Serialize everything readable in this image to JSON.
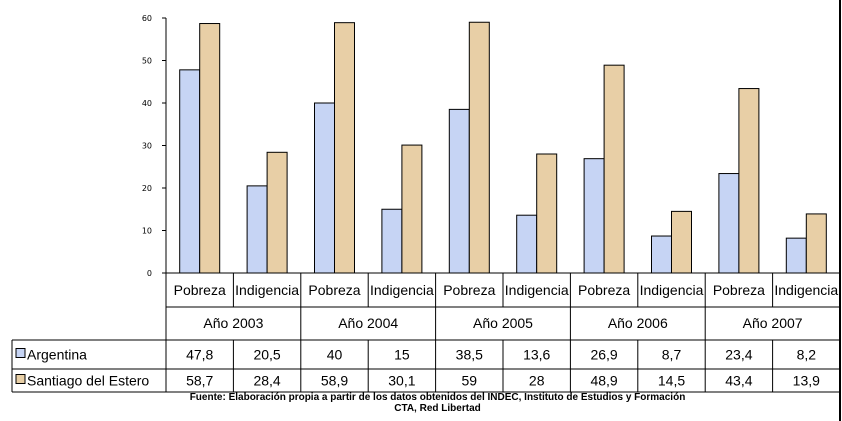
{
  "chart_data": {
    "type": "bar",
    "ylim": [
      0,
      60
    ],
    "yticks": [
      0,
      10,
      20,
      30,
      40,
      50,
      60
    ],
    "groups": [
      {
        "year": "Año 2003",
        "categories": [
          "Pobreza",
          "Indigencia"
        ]
      },
      {
        "year": "Año 2004",
        "categories": [
          "Pobreza",
          "Indigencia"
        ]
      },
      {
        "year": "Año 2005",
        "categories": [
          "Pobreza",
          "Indigencia"
        ]
      },
      {
        "year": "Año 2006",
        "categories": [
          "Pobreza",
          "Indigencia"
        ]
      },
      {
        "year": "Año 2007",
        "categories": [
          "Pobreza",
          "Indigencia"
        ]
      }
    ],
    "series": [
      {
        "name": "Argentina",
        "color": "#c6d4f4",
        "values": [
          47.8,
          20.5,
          40,
          15,
          38.5,
          13.6,
          26.9,
          8.7,
          23.4,
          8.2
        ],
        "labels": [
          "47,8",
          "20,5",
          "40",
          "15",
          "38,5",
          "13,6",
          "26,9",
          "8,7",
          "23,4",
          "8,2"
        ]
      },
      {
        "name": "Santiago del Estero",
        "color": "#e8cfa6",
        "values": [
          58.7,
          28.4,
          58.9,
          30.1,
          59,
          28,
          48.9,
          14.5,
          43.4,
          13.9
        ],
        "labels": [
          "58,7",
          "28,4",
          "58,9",
          "30,1",
          "59",
          "28",
          "48,9",
          "14,5",
          "43,4",
          "13,9"
        ]
      }
    ],
    "grid": false,
    "legend": "data-table"
  },
  "caption": {
    "line1": "Fuente: Elaboración propia a partir de los datos obtenidos del INDEC, Instituto de Estudios y Formación",
    "line2": "CTA, Red Libertad"
  }
}
